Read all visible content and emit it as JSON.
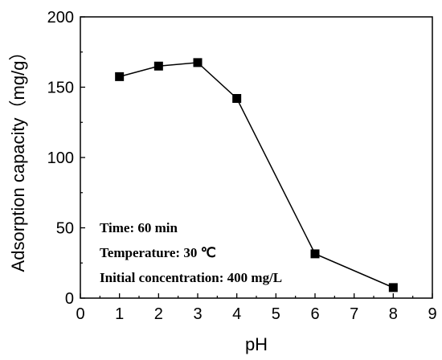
{
  "chart_data": {
    "type": "line",
    "title": "",
    "xlabel": "pH",
    "ylabel": "Adsorption capacity（mg/g）",
    "xlim": [
      0,
      9
    ],
    "ylim": [
      0,
      200
    ],
    "x_ticks": [
      0,
      1,
      2,
      3,
      4,
      5,
      6,
      7,
      8,
      9
    ],
    "y_ticks": [
      0,
      50,
      100,
      150,
      200
    ],
    "grid": false,
    "legend": "none",
    "series": [
      {
        "marker": "square",
        "color": "#000000",
        "x": [
          1,
          2,
          3,
          4,
          6,
          8
        ],
        "y": [
          157.5,
          165,
          167.5,
          142,
          31.5,
          7.5
        ]
      }
    ],
    "annotations": [
      "Time: 60 min",
      "Temperature: 30 ℃",
      "Initial concentration: 400 mg/L"
    ]
  }
}
